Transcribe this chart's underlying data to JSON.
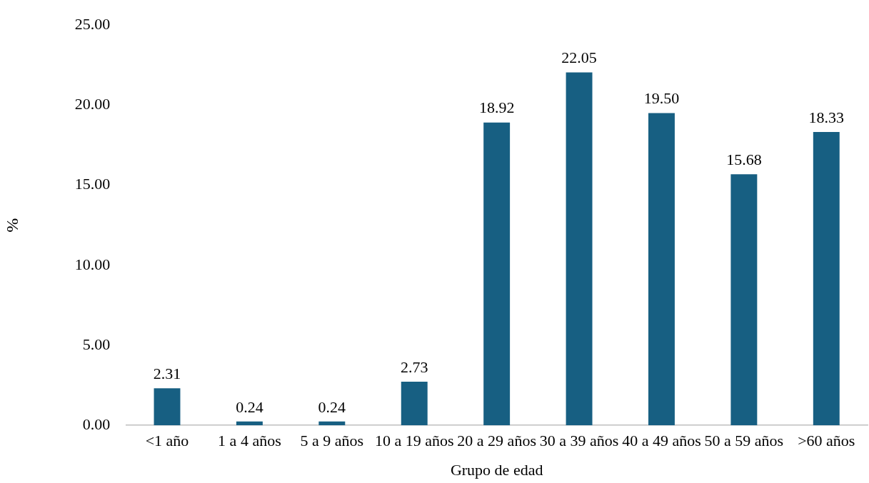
{
  "chart_data": {
    "type": "bar",
    "xlabel": "Grupo de edad",
    "ylabel": "%",
    "categories": [
      "<1 año",
      "1 a 4 años",
      "5 a 9 años",
      "10 a 19 años",
      "20 a 29 años",
      "30 a 39 años",
      "40 a 49 años",
      "50 a 59 años",
      ">60 años"
    ],
    "values": [
      2.31,
      0.24,
      0.24,
      2.73,
      18.92,
      22.05,
      19.5,
      15.68,
      18.33
    ],
    "value_labels": [
      "2.31",
      "0.24",
      "0.24",
      "2.73",
      "18.92",
      "22.05",
      "19.50",
      "15.68",
      "18.33"
    ],
    "color": "#175f82",
    "ylim": [
      0,
      25
    ],
    "yticks": [
      {
        "value": 0,
        "label": "0.00"
      },
      {
        "value": 5,
        "label": "5.00"
      },
      {
        "value": 10,
        "label": "10.00"
      },
      {
        "value": 15,
        "label": "15.00"
      },
      {
        "value": 20,
        "label": "20.00"
      },
      {
        "value": 25,
        "label": "25.00"
      }
    ],
    "grid": false,
    "legend": false
  }
}
